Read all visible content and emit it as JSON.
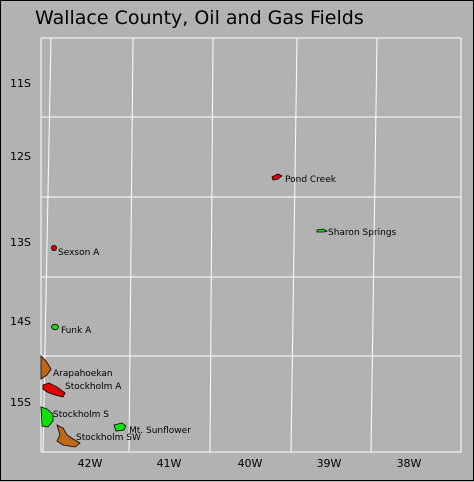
{
  "title": "Wallace County, Oil and Gas Fields",
  "colors": {
    "background": "#b2b2b2",
    "oil": "#e00000",
    "gas": "#10e010",
    "oil_and_gas": "#c06818",
    "lines": "#ffffff",
    "outline": "#000000"
  },
  "townships": [
    "11S",
    "12S",
    "13S",
    "14S",
    "15S"
  ],
  "ranges": [
    "42W",
    "41W",
    "40W",
    "39W",
    "38W"
  ],
  "fields": [
    {
      "name": "Pond Creek",
      "type": "oil"
    },
    {
      "name": "Sharon Springs",
      "type": "gas"
    },
    {
      "name": "Sexson A",
      "type": "oil"
    },
    {
      "name": "Funk A",
      "type": "gas"
    },
    {
      "name": "Arapahoekan",
      "type": "oil_and_gas"
    },
    {
      "name": "Stockholm A",
      "type": "oil"
    },
    {
      "name": "Stockholm S",
      "type": "gas"
    },
    {
      "name": "Mt. Sunflower",
      "type": "gas"
    },
    {
      "name": "Stockholm SW",
      "type": "oil_and_gas"
    }
  ]
}
